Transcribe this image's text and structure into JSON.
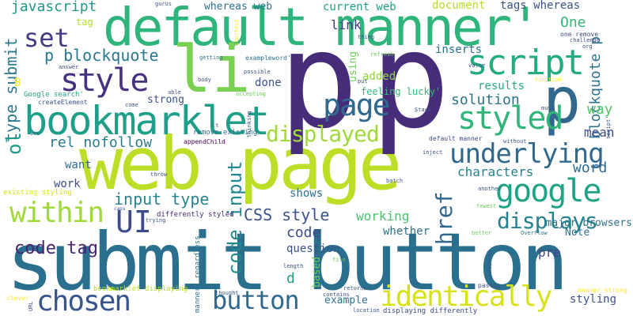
{
  "words": [
    {
      "text": "submit button",
      "color": "#2a6f8e",
      "rotate": false
    },
    {
      "text": "web page",
      "color": "#bdde26",
      "rotate": false
    },
    {
      "text": "p",
      "color": "#472c7a",
      "rotate": false
    },
    {
      "text": "p",
      "color": "#472c7a",
      "rotate": false
    },
    {
      "text": "default manner'",
      "color": "#2fb47c",
      "rotate": false
    },
    {
      "text": "li",
      "color": "#7ad151",
      "rotate": false
    },
    {
      "text": "bookmarklet",
      "color": "#1f9e89",
      "rotate": false
    },
    {
      "text": "p",
      "color": "#31688e",
      "rotate": false
    },
    {
      "text": "script",
      "color": "#25ab82",
      "rotate": false
    },
    {
      "text": "page",
      "color": "#31688e",
      "rotate": false
    },
    {
      "text": "style",
      "color": "#46327e",
      "rotate": false
    },
    {
      "text": "styled",
      "color": "#31b57b",
      "rotate": false
    },
    {
      "text": "chosen",
      "color": "#39568c",
      "rotate": false
    },
    {
      "text": "identically",
      "color": "#d8e219",
      "rotate": false
    },
    {
      "text": "button",
      "color": "#31688e",
      "rotate": false
    },
    {
      "text": "google",
      "color": "#20a386",
      "rotate": false
    },
    {
      "text": "underlying",
      "color": "#31688e",
      "rotate": false
    },
    {
      "text": "within",
      "color": "#a0da39",
      "rotate": false
    },
    {
      "text": "displayed",
      "color": "#a0da39",
      "rotate": false
    },
    {
      "text": "displays",
      "color": "#26828e",
      "rotate": false
    },
    {
      "text": "UI",
      "color": "#3e4a89",
      "rotate": false
    },
    {
      "text": "code input",
      "color": "#23898e",
      "rotate": true
    },
    {
      "text": "href",
      "color": "#31688e",
      "rotate": true
    },
    {
      "text": "submit",
      "color": "#440154",
      "rotate": false
    },
    {
      "text": "set",
      "color": "#443983",
      "rotate": false
    },
    {
      "text": "p blockquote",
      "color": "#2a788e",
      "rotate": false
    },
    {
      "text": "javascript",
      "color": "#1f988b",
      "rotate": false
    },
    {
      "text": "code tag",
      "color": "#482475",
      "rotate": false
    },
    {
      "text": "input type",
      "color": "#25858e",
      "rotate": false
    },
    {
      "text": "CSS style",
      "color": "#3b528b",
      "rotate": false
    },
    {
      "text": "code",
      "color": "#3e4a89",
      "rotate": false
    },
    {
      "text": "rel nofollow",
      "color": "#287c8e",
      "rotate": false
    },
    {
      "text": "solution",
      "color": "#2c728e",
      "rotate": false
    },
    {
      "text": "type submit",
      "color": "#2a788e",
      "rotate": true
    },
    {
      "text": "blockquote p",
      "color": "#2c728e",
      "rotate": true
    },
    {
      "text": "ol",
      "color": "#1f9a8a",
      "rotate": true
    },
    {
      "text": "One",
      "color": "#35b779",
      "rotate": false
    },
    {
      "text": "characters",
      "color": "#26828e",
      "rotate": false
    },
    {
      "text": "word",
      "color": "#31688e",
      "rotate": false
    },
    {
      "text": "way",
      "color": "#52c569",
      "rotate": false
    },
    {
      "text": "mean",
      "color": "#3e4a89",
      "rotate": false
    },
    {
      "text": "working",
      "color": "#4ac16d",
      "rotate": false
    },
    {
      "text": "styling",
      "color": "#3b528b",
      "rotate": false
    },
    {
      "text": "major browsers",
      "color": "#2d708e",
      "rotate": false
    },
    {
      "text": "current web",
      "color": "#1fa187",
      "rotate": false
    },
    {
      "text": "whereas web",
      "color": "#2c728e",
      "rotate": false
    },
    {
      "text": "document",
      "color": "#b5de2b",
      "rotate": false
    },
    {
      "text": "tags whereas",
      "color": "#3b528b",
      "rotate": false
    },
    {
      "text": "link",
      "color": "#453781",
      "rotate": false
    },
    {
      "text": "inserts",
      "color": "#2c728e",
      "rotate": false
    },
    {
      "text": "added",
      "color": "#90d743",
      "rotate": false
    },
    {
      "text": "done",
      "color": "#3b528b",
      "rotate": false
    },
    {
      "text": "strong",
      "color": "#3b528b",
      "rotate": false
    },
    {
      "text": "results",
      "color": "#22a884",
      "rotate": false
    },
    {
      "text": "want",
      "color": "#31688e",
      "rotate": false
    },
    {
      "text": "work",
      "color": "#3e4a89",
      "rotate": false
    },
    {
      "text": "shows",
      "color": "#2d708e",
      "rotate": false
    },
    {
      "text": "question",
      "color": "#3b528b",
      "rotate": false
    },
    {
      "text": "whether",
      "color": "#2c728e",
      "rotate": false
    },
    {
      "text": "pre",
      "color": "#414487",
      "rotate": false
    },
    {
      "text": "Note",
      "color": "#2c728e",
      "rotate": false
    },
    {
      "text": "example",
      "color": "#2d708e",
      "rotate": false
    },
    {
      "text": "d",
      "color": "#1fa187",
      "rotate": false
    },
    {
      "text": "based",
      "color": "#6ccd5a",
      "rotate": true
    },
    {
      "text": "using",
      "color": "#6ccd5a",
      "rotate": true
    },
    {
      "text": "tag",
      "color": "#b5de2b",
      "rotate": false
    },
    {
      "text": "B",
      "color": "#fde725",
      "rotate": false
    },
    {
      "text": "feeling lucky'",
      "color": "#35b779",
      "rotate": false
    },
    {
      "text": "Google search'",
      "color": "#20a386",
      "rotate": false
    },
    {
      "text": "createElement",
      "color": "#3b528b",
      "rotate": false
    },
    {
      "text": "appendChild",
      "color": "#440154",
      "rotate": false
    },
    {
      "text": "differently styled",
      "color": "#482878",
      "rotate": false
    },
    {
      "text": "existing styling",
      "color": "#d8e219",
      "rotate": false
    },
    {
      "text": "remove existing",
      "color": "#2c728e",
      "rotate": false
    },
    {
      "text": "bookmarklet displaying",
      "color": "#b5de2b",
      "rotate": false
    },
    {
      "text": "displaying differently",
      "color": "#3e4a89",
      "rotate": false
    },
    {
      "text": "default manner",
      "color": "#3e4a89",
      "rotate": false
    },
    {
      "text": "manner strong",
      "color": "#fde725",
      "rotate": false
    },
    {
      "text": "one remove",
      "color": "#3e4a89",
      "rotate": false
    },
    {
      "text": "challenge",
      "color": "#3e4a89",
      "rotate": false
    },
    {
      "text": "exampleword'",
      "color": "#2c728e",
      "rotate": false
    },
    {
      "text": "shortest",
      "color": "#fde725",
      "rotate": true
    },
    {
      "text": "gurus",
      "color": "#3b528b",
      "rotate": false
    },
    {
      "text": "thing",
      "color": "#3b528b",
      "rotate": false
    },
    {
      "text": "refresh",
      "color": "#6ccd5a",
      "rotate": false
    },
    {
      "text": "getting",
      "color": "#2d708e",
      "rotate": false
    },
    {
      "text": "answer",
      "color": "#3e4a89",
      "rotate": false
    },
    {
      "text": "possible",
      "color": "#3b528b",
      "rotate": false
    },
    {
      "text": "put",
      "color": "#3b528b",
      "rotate": false
    },
    {
      "text": "body",
      "color": "#3b528b",
      "rotate": false
    },
    {
      "text": "able",
      "color": "#3b528b",
      "rotate": false
    },
    {
      "text": "accepting",
      "color": "#6ccd5a",
      "rotate": false
    },
    {
      "text": "come",
      "color": "#3b528b",
      "rotate": false
    },
    {
      "text": "Stack",
      "color": "#3b528b",
      "rotate": false
    },
    {
      "text": "must",
      "color": "#3b528b",
      "rotate": false
    },
    {
      "text": "function",
      "color": "#fde725",
      "rotate": false
    },
    {
      "text": "value",
      "color": "#3b528b",
      "rotate": false
    },
    {
      "text": "org",
      "color": "#3b528b",
      "rotate": false
    },
    {
      "text": "inject",
      "color": "#3b528b",
      "rotate": false
    },
    {
      "text": "without",
      "color": "#3b528b",
      "rotate": false
    },
    {
      "text": "fewest",
      "color": "#6ccd5a",
      "rotate": false
    },
    {
      "text": "another",
      "color": "#3b528b",
      "rotate": false
    },
    {
      "text": "better",
      "color": "#6ccd5a",
      "rotate": false
    },
    {
      "text": "Overflow",
      "color": "#2d708e",
      "rotate": false
    },
    {
      "text": "external",
      "color": "#3b528b",
      "rotate": true
    },
    {
      "text": "pastie",
      "color": "#3b528b",
      "rotate": false
    },
    {
      "text": "returns",
      "color": "#3b528b",
      "rotate": false
    },
    {
      "text": "contains",
      "color": "#3b528b",
      "rotate": false
    },
    {
      "text": "location",
      "color": "#3b528b",
      "rotate": false
    },
    {
      "text": "length",
      "color": "#3b528b",
      "rotate": false
    },
    {
      "text": "file",
      "color": "#6ccd5a",
      "rotate": false
    },
    {
      "text": "clever",
      "color": "#fde725",
      "rotate": false
    },
    {
      "text": "URL",
      "color": "#3b528b",
      "rotate": true
    },
    {
      "text": "caps",
      "color": "#3b528b",
      "rotate": false
    },
    {
      "text": "trying",
      "color": "#3b528b",
      "rotate": false
    },
    {
      "text": "throw",
      "color": "#3b528b",
      "rotate": false
    },
    {
      "text": "src",
      "color": "#3b528b",
      "rotate": false
    },
    {
      "text": "lt",
      "color": "#3b528b",
      "rotate": false
    },
    {
      "text": "thinking",
      "color": "#3b528b",
      "rotate": true
    },
    {
      "text": "thought",
      "color": "#3b528b",
      "rotate": false
    },
    {
      "text": "batch",
      "color": "#3b528b",
      "rotate": false
    },
    {
      "text": "manner' regardless",
      "color": "#2c728e",
      "rotate": true
    },
    {
      "text": "script'",
      "color": "#3b528b",
      "rotate": true
    }
  ]
}
